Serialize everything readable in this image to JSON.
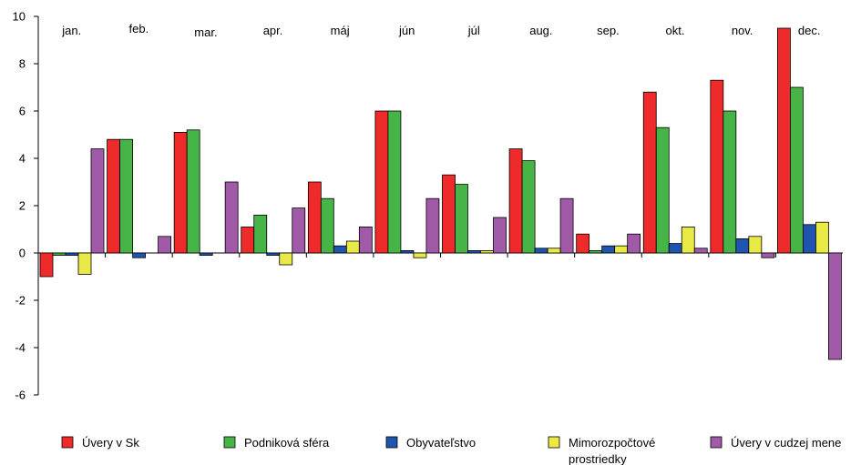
{
  "chart_data": {
    "type": "bar",
    "categories": [
      "jan.",
      "feb.",
      "mar.",
      "apr.",
      "máj",
      "jún",
      "júl",
      "aug.",
      "sep.",
      "okt.",
      "nov.",
      "dec."
    ],
    "series": [
      {
        "name": "Úvery v Sk",
        "color": "#ee2a2a",
        "values": [
          -1.0,
          4.8,
          5.1,
          1.1,
          3.0,
          6.0,
          3.3,
          4.4,
          0.8,
          6.8,
          7.3,
          9.5
        ]
      },
      {
        "name": "Podniková sféra",
        "color": "#46b446",
        "values": [
          -0.1,
          4.8,
          5.2,
          1.6,
          2.3,
          6.0,
          2.9,
          3.9,
          0.1,
          5.3,
          6.0,
          7.0
        ]
      },
      {
        "name": "Obyvateľstvo",
        "color": "#1f55b0",
        "values": [
          -0.1,
          -0.2,
          -0.1,
          -0.1,
          0.3,
          0.1,
          0.1,
          0.2,
          0.3,
          0.4,
          0.6,
          1.2
        ]
      },
      {
        "name": "Mimorozpočtové prostriedky",
        "color": "#eaea46",
        "values": [
          -0.9,
          0.0,
          0.0,
          -0.5,
          0.5,
          -0.2,
          0.1,
          0.2,
          0.3,
          1.1,
          0.7,
          1.3
        ]
      },
      {
        "name": "Úvery v cudzej mene",
        "color": "#a05aa8",
        "values": [
          4.4,
          0.7,
          3.0,
          1.9,
          1.1,
          2.3,
          1.5,
          2.3,
          0.8,
          0.2,
          -0.2,
          -4.5
        ]
      }
    ],
    "ylim": [
      -6,
      10
    ],
    "yticks": [
      -6,
      -4,
      -2,
      0,
      2,
      4,
      6,
      8,
      10
    ],
    "legend_position": "bottom",
    "grid": false
  }
}
